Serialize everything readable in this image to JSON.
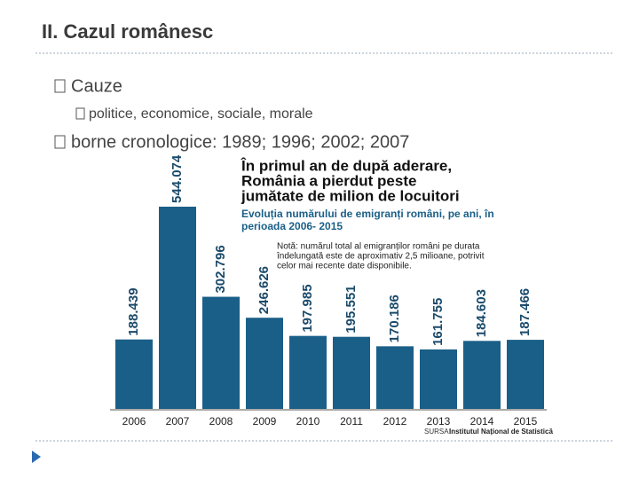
{
  "slide_title": "II. Cazul românesc",
  "bullets": [
    {
      "text": "Cauze",
      "sub": [
        "politice, economice, sociale, morale"
      ]
    },
    {
      "text": "borne cronologice: 1989; 1996; 2002; 2007"
    }
  ],
  "chart_data": {
    "type": "bar",
    "title": [
      "În primul an de după aderare,",
      "România a pierdut peste",
      "jumătate de milion de locuitori"
    ],
    "subtitle": [
      "Evoluția numărului de emigranți români, pe ani, în",
      "perioada 2006- 2015"
    ],
    "note": [
      "Notă: numărul total al emigranților români pe durata",
      "îndelungată este de aproximativ 2,5 milioane, potrivit",
      "celor mai recente date disponibile."
    ],
    "source_label": "SURSA:",
    "source": "Institutul Național de Statistică",
    "categories": [
      "2006",
      "2007",
      "2008",
      "2009",
      "2010",
      "2011",
      "2012",
      "2013",
      "2014",
      "2015"
    ],
    "values": [
      188439,
      544074,
      302796,
      246626,
      197985,
      195551,
      170186,
      161755,
      184603,
      187466
    ],
    "value_labels": [
      "188.439",
      "544.074",
      "302.796",
      "246.626",
      "197.985",
      "195.551",
      "170.186",
      "161.755",
      "184.603",
      "187.466"
    ],
    "color": "#1a5f88"
  }
}
